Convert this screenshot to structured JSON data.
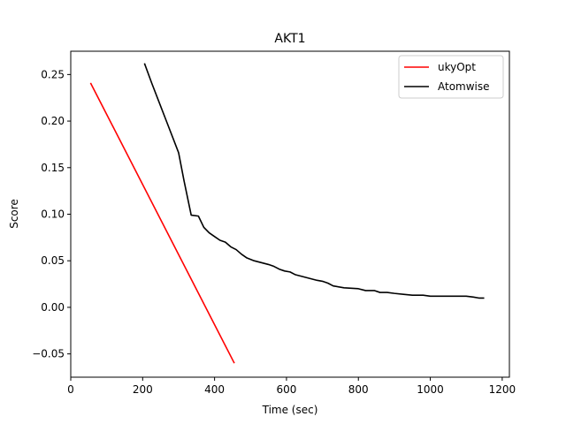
{
  "chart_data": {
    "type": "line",
    "title": "AKT1",
    "xlabel": "Time (sec)",
    "ylabel": "Score",
    "xlim": [
      0,
      1220
    ],
    "ylim": [
      -0.075,
      0.275
    ],
    "xticks": [
      0,
      200,
      400,
      600,
      800,
      1000,
      1200
    ],
    "yticks": [
      -0.05,
      0.0,
      0.05,
      0.1,
      0.15,
      0.2,
      0.25
    ],
    "xtick_labels": [
      "0",
      "200",
      "400",
      "600",
      "800",
      "1000",
      "1200"
    ],
    "ytick_labels": [
      "−0.05",
      "0.00",
      "0.05",
      "0.10",
      "0.15",
      "0.20",
      "0.25"
    ],
    "grid": false,
    "legend": "top-right",
    "series": [
      {
        "name": "ukyOpt",
        "color": "#ff0000",
        "x": [
          55,
          455
        ],
        "y": [
          0.241,
          -0.06
        ]
      },
      {
        "name": "Atomwise",
        "color": "#000000",
        "x": [
          205,
          225,
          245,
          265,
          285,
          300,
          315,
          335,
          355,
          370,
          385,
          400,
          415,
          430,
          445,
          460,
          475,
          490,
          510,
          530,
          550,
          565,
          580,
          595,
          610,
          625,
          645,
          665,
          685,
          700,
          715,
          730,
          760,
          800,
          820,
          845,
          860,
          880,
          900,
          925,
          950,
          980,
          1000,
          1025,
          1060,
          1100,
          1120,
          1135,
          1150
        ],
        "y": [
          0.262,
          0.241,
          0.221,
          0.201,
          0.181,
          0.166,
          0.136,
          0.099,
          0.098,
          0.086,
          0.08,
          0.076,
          0.072,
          0.07,
          0.065,
          0.062,
          0.057,
          0.053,
          0.05,
          0.048,
          0.046,
          0.044,
          0.041,
          0.039,
          0.038,
          0.035,
          0.033,
          0.031,
          0.029,
          0.028,
          0.026,
          0.023,
          0.021,
          0.02,
          0.018,
          0.018,
          0.016,
          0.016,
          0.015,
          0.014,
          0.013,
          0.013,
          0.012,
          0.012,
          0.012,
          0.012,
          0.011,
          0.01,
          0.01
        ]
      }
    ]
  }
}
